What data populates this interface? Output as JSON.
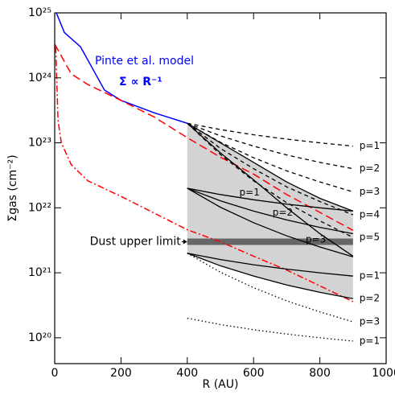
{
  "chart_data": {
    "type": "line",
    "xlabel": "R (AU)",
    "ylabel": "Σgas (cm⁻²)",
    "xlim": [
      0,
      1000
    ],
    "ylim": [
      4e+19,
      1e+25
    ],
    "log_y": true,
    "xticks": [
      0,
      200,
      400,
      600,
      800,
      1000
    ],
    "yticks": [
      {
        "value": 1e+20,
        "label": "10²⁰"
      },
      {
        "value": 1e+21,
        "label": "10²¹"
      },
      {
        "value": 1e+22,
        "label": "10²²"
      },
      {
        "value": 1e+23,
        "label": "10²³"
      },
      {
        "value": 1e+24,
        "label": "10²⁴"
      },
      {
        "value": 1e+25,
        "label": "10²⁵"
      }
    ],
    "annotations": [
      {
        "text": "Pinte et al. model",
        "color": "#0000ff"
      },
      {
        "text": "Σ ∝ R⁻¹",
        "color": "#0000ff"
      }
    ],
    "dust_limit": {
      "value": 3e+21,
      "xrange": [
        400,
        900
      ],
      "label": "Dust upper limit",
      "color": "#666666"
    },
    "shade_color": "#d3d3d3",
    "series": [
      {
        "style": "solid",
        "color": "#0000ff",
        "x": [
          5,
          29,
          78,
          150,
          200,
          300,
          400
        ],
        "values": [
          1e+25,
          5e+24,
          3e+24,
          6.5e+23,
          4.5e+23,
          2.9e+23,
          2e+23
        ]
      },
      {
        "style": "dashed-long",
        "color": "#ff0000",
        "x": [
          0,
          50,
          100,
          200,
          300,
          400,
          500,
          600,
          700,
          800,
          900
        ],
        "values": [
          3.3e+24,
          1.15e+24,
          7.9e+23,
          4.5e+23,
          2.5e+23,
          1.2e+23,
          6e+22,
          3.3e+22,
          1.6e+22,
          8.5e+21,
          4.5e+21
        ]
      },
      {
        "style": "dashdot",
        "color": "#ff0000",
        "x": [
          3,
          10,
          20,
          50,
          100,
          200,
          300,
          400,
          500,
          600,
          700,
          800,
          900
        ],
        "values": [
          3e+24,
          2.2e+23,
          1e+23,
          4.6e+22,
          2.6e+22,
          1.5e+22,
          8.3e+21,
          4.6e+21,
          3e+21,
          1.8e+21,
          1.1e+21,
          6.3e+20,
          3.6e+20
        ]
      },
      {
        "style": "dashed",
        "color": "#000000",
        "label": "p=1",
        "x": [
          400,
          500,
          600,
          700,
          800,
          900
        ],
        "values": [
          2e+23,
          1.6e+23,
          1.33e+23,
          1.14e+23,
          1e+23,
          8.9e+22
        ]
      },
      {
        "style": "dashed",
        "color": "#000000",
        "label": "p=2",
        "x": [
          400,
          500,
          600,
          700,
          800,
          900
        ],
        "values": [
          2e+23,
          1.28e+23,
          8.9e+22,
          6.5e+22,
          5e+22,
          4e+22
        ]
      },
      {
        "style": "dashed",
        "color": "#000000",
        "label": "p=3",
        "x": [
          400,
          500,
          600,
          700,
          800,
          900
        ],
        "values": [
          2e+23,
          1.02e+23,
          5.9e+22,
          3.7e+22,
          2.5e+22,
          1.76e+22
        ]
      },
      {
        "style": "dashed",
        "color": "#000000",
        "label": "p=4",
        "x": [
          400,
          500,
          600,
          700,
          800,
          900
        ],
        "values": [
          2e+23,
          8.2e+22,
          4e+22,
          2.1e+22,
          1.25e+22,
          7.8e+21
        ]
      },
      {
        "style": "dashed",
        "color": "#000000",
        "label": "p=5",
        "x": [
          400,
          500,
          600,
          700,
          800,
          900
        ],
        "values": [
          2e+23,
          6.6e+22,
          2.6e+22,
          1.2e+22,
          6.3e+21,
          3.5e+21
        ]
      },
      {
        "style": "solid",
        "color": "#000000",
        "x": [
          400,
          500,
          600,
          700,
          800,
          900
        ],
        "values": [
          2e+23,
          1e+23,
          5e+22,
          2.5e+22,
          1.4e+22,
          8.9e+21
        ]
      },
      {
        "style": "solid",
        "color": "#000000",
        "x": [
          400,
          500,
          600,
          700,
          800,
          900
        ],
        "values": [
          2e+23,
          7e+22,
          2.7e+22,
          1e+22,
          4e+21,
          1.8e+21
        ]
      },
      {
        "style": "solid",
        "color": "#000000",
        "inner_label": "p=1",
        "x": [
          400,
          500,
          600,
          700,
          800,
          900
        ],
        "values": [
          2e+22,
          1.6e+22,
          1.33e+22,
          1.14e+22,
          1e+22,
          8.9e+21
        ]
      },
      {
        "style": "solid",
        "color": "#000000",
        "inner_label": "p=2",
        "x": [
          400,
          500,
          600,
          700,
          800,
          900
        ],
        "values": [
          2e+22,
          1.28e+22,
          8.9e+21,
          6.5e+21,
          5e+21,
          4e+21
        ]
      },
      {
        "style": "solid",
        "color": "#000000",
        "inner_label": "p=3",
        "x": [
          400,
          500,
          600,
          700,
          800,
          900
        ],
        "values": [
          2e+22,
          1.02e+22,
          5.9e+21,
          3.7e+21,
          2.5e+21,
          1.76e+21
        ]
      },
      {
        "style": "solid",
        "color": "#000000",
        "label": "p=1",
        "x": [
          400,
          500,
          600,
          700,
          800,
          900
        ],
        "values": [
          2e+21,
          1.6e+21,
          1.33e+21,
          1.14e+21,
          1e+21,
          8.9e+20
        ]
      },
      {
        "style": "solid",
        "color": "#000000",
        "label": "p=2",
        "x": [
          400,
          500,
          600,
          700,
          800,
          900
        ],
        "values": [
          2e+21,
          1.28e+21,
          8.9e+20,
          6.5e+20,
          5e+20,
          4e+20
        ]
      },
      {
        "style": "dotted",
        "color": "#000000",
        "label": "p=3",
        "x": [
          400,
          500,
          600,
          700,
          800,
          900
        ],
        "values": [
          2e+21,
          1.02e+21,
          5.9e+20,
          3.7e+20,
          2.5e+20,
          1.76e+20
        ]
      },
      {
        "style": "dotted",
        "color": "#000000",
        "label": "p=1",
        "x": [
          400,
          500,
          600,
          700,
          800,
          900
        ],
        "values": [
          2e+20,
          1.6e+20,
          1.33e+20,
          1.14e+20,
          1e+20,
          8.9e+19
        ]
      }
    ]
  }
}
